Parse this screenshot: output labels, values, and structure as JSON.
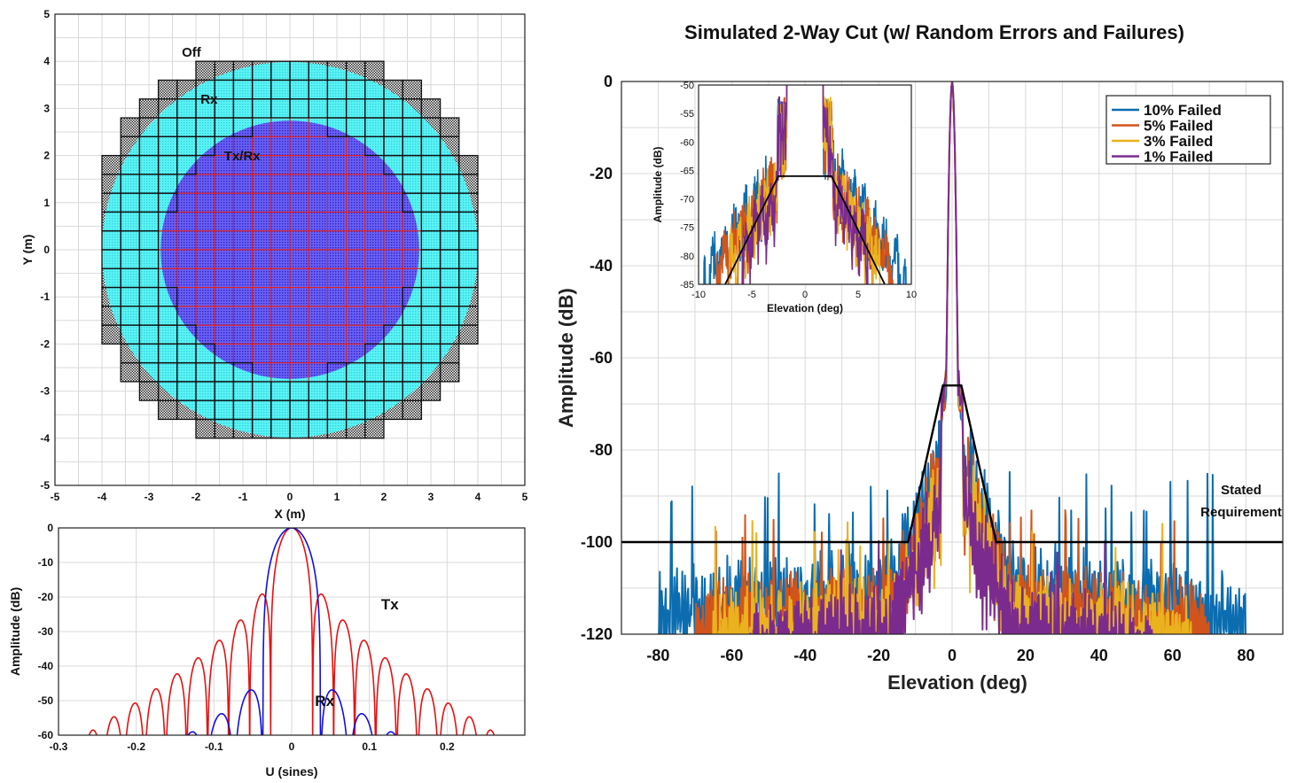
{
  "chart_data": [
    {
      "type": "scatter",
      "id": "array_layout",
      "title": "",
      "xlabel": "X (m)",
      "ylabel": "Y (m)",
      "xlim": [
        -5,
        5
      ],
      "ylim": [
        -5,
        5
      ],
      "xticks": [
        -5,
        -4,
        -3,
        -2,
        -1,
        0,
        1,
        2,
        3,
        4,
        5
      ],
      "yticks": [
        -5,
        -4,
        -3,
        -2,
        -1,
        0,
        1,
        2,
        3,
        4,
        5
      ],
      "grid": true,
      "regions": [
        {
          "label": "Off",
          "color": "#3c3c3c",
          "extent": "tiles outside Rx aperture"
        },
        {
          "label": "Rx",
          "color": "#4ef0f0",
          "radius": 4.0
        },
        {
          "label": "Tx/Rx",
          "color": "#4a3df0",
          "radius": 2.75
        }
      ],
      "tile_size": 0.4,
      "tile_rows_halfwidth": [
        {
          "yrange": [
            3.6,
            4.0
          ],
          "halfwidth": 2.0
        },
        {
          "yrange": [
            3.2,
            3.6
          ],
          "halfwidth": 2.8
        },
        {
          "yrange": [
            2.8,
            3.2
          ],
          "halfwidth": 3.2
        },
        {
          "yrange": [
            2.4,
            2.8
          ],
          "halfwidth": 3.6
        },
        {
          "yrange": [
            2.0,
            2.4
          ],
          "halfwidth": 3.6
        },
        {
          "yrange": [
            -2.0,
            2.0
          ],
          "halfwidth": 4.0
        }
      ],
      "red_grid_halfwidth": 2.8,
      "annotations": [
        {
          "text": "Off",
          "x": -2.3,
          "y": 4.1
        },
        {
          "text": "Rx",
          "x": -1.9,
          "y": 3.1
        },
        {
          "text": "Tx/Rx",
          "x": -1.4,
          "y": 1.9
        }
      ]
    },
    {
      "type": "line",
      "id": "one_way_patterns",
      "title": "",
      "xlabel": "U (sines)",
      "ylabel": "Amplitude (dB)",
      "xlim": [
        -0.3,
        0.3
      ],
      "ylim": [
        -60,
        0
      ],
      "xticks": [
        -0.3,
        -0.2,
        -0.1,
        0,
        0.1,
        0.2
      ],
      "yticks": [
        0,
        -10,
        -20,
        -30,
        -40,
        -50,
        -60
      ],
      "grid": true,
      "series": [
        {
          "name": "Tx",
          "color": "#e81010",
          "aperture_lambda": 37,
          "first_sidelobe_db": -18,
          "edge_db": -47
        },
        {
          "name": "Rx",
          "color": "#1010e0",
          "aperture_lambda": 27,
          "first_sidelobe_db": -46,
          "edge_db": -62,
          "extent": 0.15
        }
      ],
      "annotations": [
        {
          "text": "Tx",
          "x": 0.115,
          "y": -22
        },
        {
          "text": "Rx",
          "x": 0.03,
          "y": -50
        }
      ]
    },
    {
      "type": "line",
      "id": "two_way_cut",
      "title": "Simulated 2-Way Cut (w/ Random Errors and Failures)",
      "xlabel": "Elevation (deg)",
      "ylabel": "Amplitude (dB)",
      "xlim": [
        -90,
        90
      ],
      "ylim": [
        -120,
        0
      ],
      "xticks": [
        -80,
        -60,
        -40,
        -20,
        0,
        20,
        40,
        60,
        80
      ],
      "yticks": [
        0,
        -20,
        -40,
        -60,
        -80,
        -100,
        -120
      ],
      "grid": true,
      "legend": "top-right",
      "series": [
        {
          "name": "10% Failed",
          "color": "#0b6db0",
          "spread_deg": 80,
          "floor_db": -100
        },
        {
          "name": "5% Failed",
          "color": "#d3541a",
          "spread_deg": 70,
          "floor_db": -104
        },
        {
          "name": "3% Failed",
          "color": "#eab21e",
          "spread_deg": 65,
          "floor_db": -106
        },
        {
          "name": "1% Failed",
          "color": "#7b2b8e",
          "spread_deg": 55,
          "floor_db": -108
        }
      ],
      "requirement": {
        "label_lines": [
          "Stated",
          "Requirement"
        ],
        "color": "#000000",
        "x": [
          -90,
          -12,
          -2.5,
          2.5,
          12,
          90
        ],
        "y": [
          -100,
          -100,
          -66,
          -66,
          -100,
          -100
        ]
      }
    },
    {
      "type": "line",
      "id": "inset_zoom",
      "title": "",
      "xlabel": "Elevation (deg)",
      "ylabel": "Amplitude (dB)",
      "xlim": [
        -10,
        10
      ],
      "ylim": [
        -85,
        -50
      ],
      "xticks": [
        -10,
        -5,
        0,
        5,
        10
      ],
      "yticks": [
        -50,
        -55,
        -60,
        -65,
        -70,
        -75,
        -80,
        -85
      ],
      "grid": false,
      "requirement": {
        "x": [
          -7.5,
          -2.5,
          2.5,
          7.5
        ],
        "y": [
          -85,
          -66,
          -66,
          -85
        ]
      }
    }
  ]
}
